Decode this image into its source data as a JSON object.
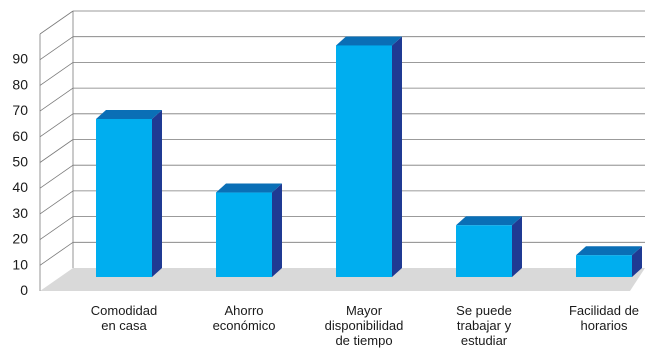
{
  "chart_data": {
    "type": "bar",
    "style": "3d-column",
    "categories": [
      [
        "Comodidad",
        "en casa"
      ],
      [
        "Ahorro",
        "económico"
      ],
      [
        "Mayor",
        "disponibilidad",
        "de tiempo"
      ],
      [
        "Se puede",
        "trabajar y",
        "estudiar"
      ],
      [
        "Facilidad de",
        "horarios"
      ]
    ],
    "values": [
      58,
      31,
      85,
      19,
      8
    ],
    "title": "",
    "xlabel": "",
    "ylabel": "",
    "ylim": [
      0,
      90
    ],
    "yticks": [
      0,
      10,
      20,
      30,
      40,
      50,
      60,
      70,
      80,
      90
    ],
    "grid": true,
    "colors": {
      "bar_front": "#00aeef",
      "bar_side": "#1f3a93",
      "bar_top": "#0a6fb6",
      "floor": "#d9d9d9",
      "gridline": "#7a7a7a",
      "text": "#1a1a1a"
    }
  }
}
